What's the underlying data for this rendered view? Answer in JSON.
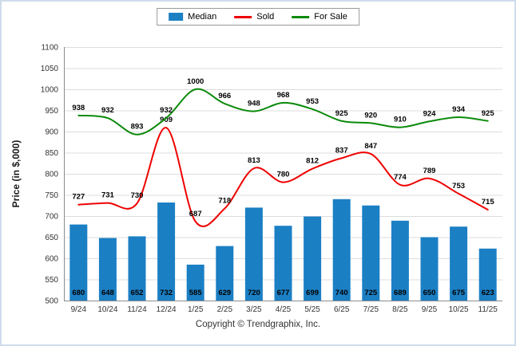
{
  "ylabel": "Price (in $,000)",
  "copyright": "Copyright © Trendgraphix, Inc.",
  "colors": {
    "median": "#1b7fc4",
    "sold": "#ee0000",
    "for_sale": "#0b8a0b",
    "grid": "#dcdcdc",
    "axis": "#8c8c8c",
    "label_text": "#000000",
    "tick_text": "#333333"
  },
  "chart_data": {
    "type": "bar+line",
    "title": "",
    "categories": [
      "9/24",
      "10/24",
      "11/24",
      "12/24",
      "1/25",
      "2/25",
      "3/25",
      "4/25",
      "5/25",
      "6/25",
      "7/25",
      "8/25",
      "9/25",
      "10/25",
      "11/25"
    ],
    "series": [
      {
        "name": "Median",
        "type": "bar",
        "color": "#1b7fc4",
        "values": [
          680,
          648,
          652,
          732,
          585,
          629,
          720,
          677,
          699,
          740,
          725,
          689,
          650,
          675,
          623
        ]
      },
      {
        "name": "Sold",
        "type": "line",
        "color": "#ee0000",
        "values": [
          727,
          731,
          730,
          909,
          687,
          718,
          813,
          780,
          812,
          837,
          847,
          774,
          789,
          753,
          715
        ]
      },
      {
        "name": "For Sale",
        "type": "line",
        "color": "#0b8a0b",
        "values": [
          938,
          932,
          893,
          932,
          1000,
          966,
          948,
          968,
          953,
          925,
          920,
          910,
          924,
          934,
          925
        ]
      }
    ],
    "xlabel": "",
    "ylabel": "Price (in $,000)",
    "ylim": [
      500,
      1100
    ],
    "yticks": [
      500,
      550,
      600,
      650,
      700,
      750,
      800,
      850,
      900,
      950,
      1000,
      1050,
      1100
    ],
    "grid": "horizontal",
    "legend_position": "top-center",
    "data_labels": "shown-bold-black"
  }
}
